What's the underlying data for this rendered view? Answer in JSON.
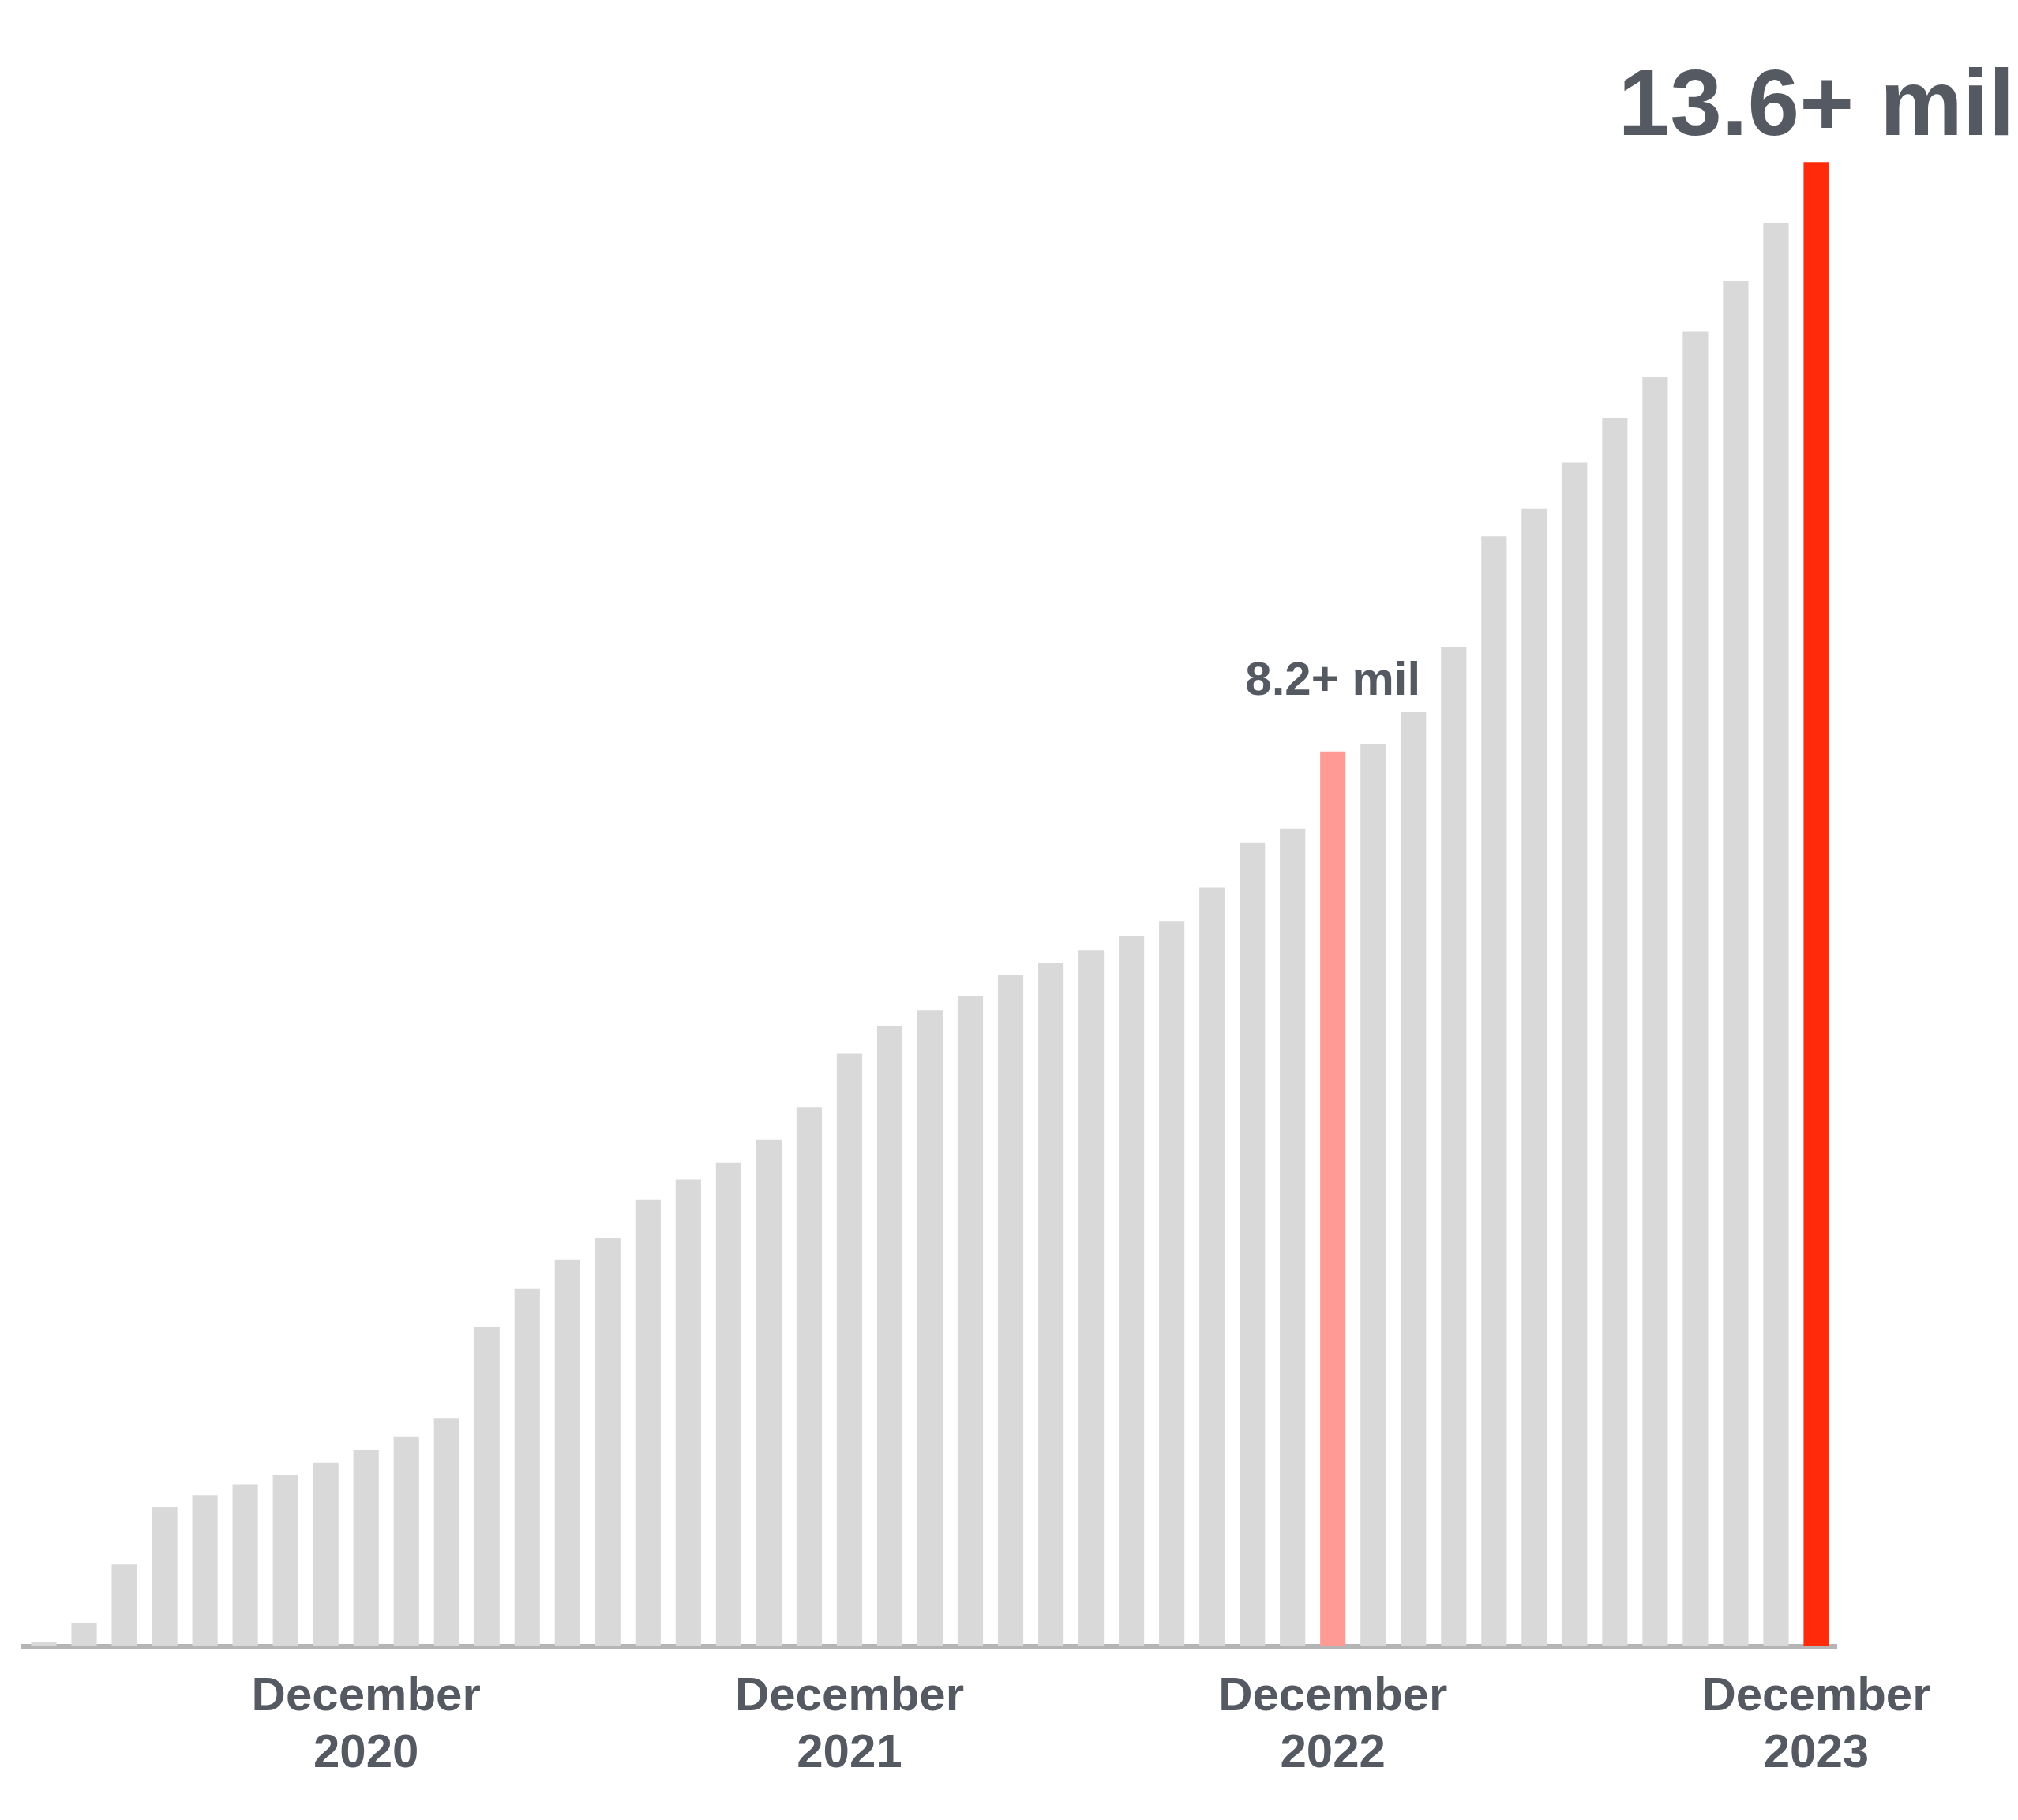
{
  "chart_data": {
    "type": "bar",
    "categories": [
      null,
      null,
      null,
      null,
      null,
      null,
      null,
      null,
      "December 2020",
      null,
      null,
      null,
      null,
      null,
      null,
      null,
      null,
      null,
      null,
      null,
      "December 2021",
      null,
      null,
      null,
      null,
      null,
      null,
      null,
      null,
      null,
      null,
      null,
      "December 2022",
      null,
      null,
      null,
      null,
      null,
      null,
      null,
      null,
      null,
      null,
      null,
      "December 2023"
    ],
    "values": [
      0.04,
      0.21,
      0.75,
      1.28,
      1.38,
      1.48,
      1.57,
      1.68,
      1.8,
      1.92,
      2.09,
      2.93,
      3.28,
      3.54,
      3.74,
      4.09,
      4.28,
      4.43,
      4.64,
      4.94,
      5.43,
      5.68,
      5.83,
      5.96,
      6.15,
      6.26,
      6.38,
      6.51,
      6.64,
      6.95,
      7.36,
      7.49,
      8.2,
      8.27,
      8.56,
      9.16,
      10.17,
      10.42,
      10.85,
      11.25,
      11.63,
      12.05,
      12.51,
      13.04,
      13.6
    ],
    "colors": [
      "#d9d9d9",
      "#d9d9d9",
      "#d9d9d9",
      "#d9d9d9",
      "#d9d9d9",
      "#d9d9d9",
      "#d9d9d9",
      "#d9d9d9",
      "#d9d9d9",
      "#d9d9d9",
      "#d9d9d9",
      "#d9d9d9",
      "#d9d9d9",
      "#d9d9d9",
      "#d9d9d9",
      "#d9d9d9",
      "#d9d9d9",
      "#d9d9d9",
      "#d9d9d9",
      "#d9d9d9",
      "#d9d9d9",
      "#d9d9d9",
      "#d9d9d9",
      "#d9d9d9",
      "#d9d9d9",
      "#d9d9d9",
      "#d9d9d9",
      "#d9d9d9",
      "#d9d9d9",
      "#d9d9d9",
      "#d9d9d9",
      "#d9d9d9",
      "#ff9b94",
      "#d9d9d9",
      "#d9d9d9",
      "#d9d9d9",
      "#d9d9d9",
      "#d9d9d9",
      "#d9d9d9",
      "#d9d9d9",
      "#d9d9d9",
      "#d9d9d9",
      "#d9d9d9",
      "#d9d9d9",
      "#ff2a0a"
    ],
    "value_labels": [
      null,
      null,
      null,
      null,
      null,
      null,
      null,
      null,
      null,
      null,
      null,
      null,
      null,
      null,
      null,
      null,
      null,
      null,
      null,
      null,
      null,
      null,
      null,
      null,
      null,
      null,
      null,
      null,
      null,
      null,
      null,
      null,
      "8.2+ mil",
      null,
      null,
      null,
      null,
      null,
      null,
      null,
      null,
      null,
      null,
      null,
      "13.6+ mil"
    ],
    "grid": false,
    "legend": false,
    "tick_labels": "x"
  }
}
